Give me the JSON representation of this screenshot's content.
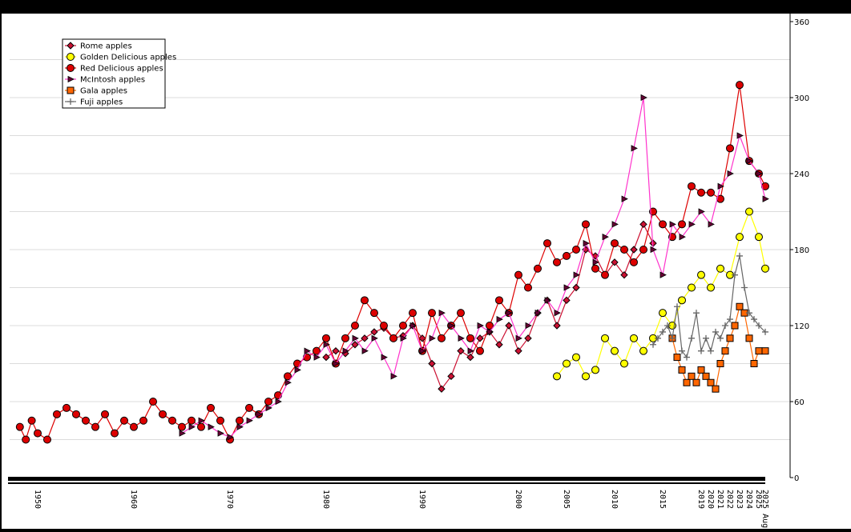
{
  "chart_data": {
    "type": "line",
    "title": "",
    "xlabel": "",
    "ylabel": "",
    "ylim": [
      0,
      360
    ],
    "y_ticks": [
      0,
      60,
      120,
      180,
      240,
      300,
      360
    ],
    "grid": true,
    "legend_placement": "top-left",
    "x_tick_labels": [
      "1950",
      "1960",
      "1970",
      "1980",
      "1990",
      "2000",
      "2005",
      "2010",
      "2015",
      "2019",
      "2020",
      "2021",
      "2022",
      "2023",
      "2024",
      "2025",
      "2025 Aug"
    ],
    "series": [
      {
        "name": "Rome apples",
        "color": "#cc1133",
        "marker": "diamond",
        "x": [
          1980.0,
          1981.0,
          1982.0,
          1983.0,
          1984.0,
          1985.0,
          1986.0,
          1987.0,
          1988.0,
          1989.0,
          1990.0,
          1991.0,
          1992.0,
          1993.0,
          1994.0,
          1995.0,
          1996.0,
          1997.0,
          1998.0,
          1999.0,
          2000.0,
          2001.0,
          2002.0,
          2003.0,
          2004.0,
          2005.0,
          2006.0,
          2007.0,
          2008.0,
          2009.0,
          2010.0,
          2011.0,
          2012.0,
          2013.0,
          2014.0
        ],
        "y": [
          95,
          100,
          98,
          105,
          110,
          115,
          118,
          110,
          112,
          120,
          110,
          90,
          70,
          80,
          100,
          95,
          110,
          115,
          105,
          120,
          100,
          110,
          130,
          140,
          120,
          140,
          150,
          180,
          175,
          160,
          170,
          160,
          180,
          200,
          185
        ]
      },
      {
        "name": "Golden Delicious apples",
        "color": "#ffff00",
        "marker": "circle",
        "x": [
          2004.0,
          2005.0,
          2006.0,
          2007.0,
          2008.0,
          2009.0,
          2010.0,
          2011.0,
          2012.0,
          2013.0,
          2014.0,
          2015.0,
          2016.0,
          2017.0,
          2018.0,
          2019.0,
          2020.0,
          2021.0,
          2022.0,
          2023.0,
          2024.0,
          2025.0,
          2025.6
        ],
        "y": [
          80,
          90,
          95,
          80,
          85,
          110,
          100,
          90,
          110,
          100,
          110,
          130,
          120,
          140,
          150,
          160,
          150,
          165,
          160,
          190,
          210,
          190,
          165
        ]
      },
      {
        "name": "Red Delicious apples",
        "color": "#dd0000",
        "marker": "circle",
        "x": [
          1947.0,
          1948.0,
          1949.0,
          1950.0,
          1951.0,
          1952.0,
          1953.0,
          1954.0,
          1955.0,
          1956.0,
          1957.0,
          1958.0,
          1959.0,
          1960.0,
          1961.0,
          1962.0,
          1963.0,
          1964.0,
          1965.0,
          1966.0,
          1967.0,
          1968.0,
          1969.0,
          1970.0,
          1971.0,
          1972.0,
          1973.0,
          1974.0,
          1975.0,
          1976.0,
          1977.0,
          1978.0,
          1979.0,
          1980.0,
          1981.0,
          1982.0,
          1983.0,
          1984.0,
          1985.0,
          1986.0,
          1987.0,
          1988.0,
          1989.0,
          1990.0,
          1991.0,
          1992.0,
          1993.0,
          1994.0,
          1995.0,
          1996.0,
          1997.0,
          1998.0,
          1999.0,
          2000.0,
          2001.0,
          2002.0,
          2003.0,
          2004.0,
          2005.0,
          2006.0,
          2007.0,
          2008.0,
          2009.0,
          2010.0,
          2011.0,
          2012.0,
          2013.0,
          2014.0,
          2015.0,
          2016.0,
          2017.0,
          2018.0,
          2019.0,
          2020.0,
          2021.0,
          2022.0,
          2023.0,
          2024.0,
          2025.0,
          2025.6
        ],
        "y": [
          40,
          30,
          45,
          35,
          30,
          50,
          55,
          50,
          45,
          40,
          50,
          35,
          45,
          40,
          45,
          60,
          50,
          45,
          40,
          45,
          40,
          55,
          45,
          30,
          45,
          55,
          50,
          60,
          65,
          80,
          90,
          95,
          100,
          110,
          90,
          110,
          120,
          140,
          130,
          120,
          110,
          120,
          130,
          100,
          130,
          110,
          120,
          130,
          110,
          100,
          120,
          140,
          130,
          160,
          150,
          165,
          185,
          170,
          175,
          180,
          200,
          165,
          160,
          185,
          180,
          170,
          180,
          210,
          200,
          190,
          200,
          230,
          225,
          225,
          220,
          260,
          310,
          250,
          240,
          230
        ]
      },
      {
        "name": "McIntosh apples",
        "color": "#ff33cc",
        "marker": "triangle",
        "x": [
          1965.0,
          1966.0,
          1967.0,
          1968.0,
          1969.0,
          1970.0,
          1971.0,
          1972.0,
          1973.0,
          1974.0,
          1975.0,
          1976.0,
          1977.0,
          1978.0,
          1979.0,
          1980.0,
          1981.0,
          1982.0,
          1983.0,
          1984.0,
          1985.0,
          1986.0,
          1987.0,
          1988.0,
          1989.0,
          1990.0,
          1991.0,
          1992.0,
          1993.0,
          1994.0,
          1995.0,
          1996.0,
          1997.0,
          1998.0,
          1999.0,
          2000.0,
          2001.0,
          2002.0,
          2003.0,
          2004.0,
          2005.0,
          2006.0,
          2007.0,
          2008.0,
          2009.0,
          2010.0,
          2011.0,
          2012.0,
          2013.0,
          2014.0,
          2015.0,
          2016.0,
          2017.0,
          2018.0,
          2019.0,
          2020.0,
          2021.0,
          2022.0,
          2023.0,
          2024.0,
          2025.0,
          2025.6
        ],
        "y": [
          35,
          40,
          45,
          40,
          35,
          32,
          40,
          45,
          50,
          55,
          60,
          75,
          85,
          100,
          95,
          105,
          90,
          100,
          110,
          100,
          110,
          95,
          80,
          110,
          120,
          100,
          110,
          130,
          120,
          110,
          100,
          120,
          115,
          125,
          130,
          110,
          120,
          130,
          140,
          130,
          150,
          160,
          185,
          170,
          190,
          200,
          220,
          260,
          300,
          180,
          160,
          200,
          190,
          200,
          210,
          200,
          230,
          240,
          270,
          250,
          240,
          220
        ]
      },
      {
        "name": "Gala apples",
        "color": "#ff6600",
        "marker": "square",
        "x": [
          2016.0,
          2016.5,
          2017.0,
          2017.5,
          2018.0,
          2018.5,
          2019.0,
          2019.5,
          2020.0,
          2020.5,
          2021.0,
          2021.5,
          2022.0,
          2022.5,
          2023.0,
          2023.5,
          2024.0,
          2024.5,
          2025.0,
          2025.6
        ],
        "y": [
          110,
          95,
          85,
          75,
          80,
          75,
          85,
          80,
          75,
          70,
          90,
          100,
          110,
          120,
          135,
          130,
          110,
          90,
          100,
          100
        ]
      },
      {
        "name": "Fuji apples",
        "color": "#666666",
        "marker": "plus",
        "x": [
          2014.0,
          2014.5,
          2015.0,
          2015.5,
          2016.0,
          2016.5,
          2017.0,
          2017.5,
          2018.0,
          2018.5,
          2019.0,
          2019.5,
          2020.0,
          2020.5,
          2021.0,
          2021.5,
          2022.0,
          2022.5,
          2023.0,
          2023.5,
          2024.0,
          2024.5,
          2025.0,
          2025.6
        ],
        "y": [
          105,
          110,
          115,
          120,
          110,
          135,
          100,
          95,
          110,
          130,
          100,
          110,
          100,
          115,
          110,
          120,
          125,
          160,
          175,
          150,
          130,
          125,
          120,
          115
        ]
      }
    ]
  }
}
